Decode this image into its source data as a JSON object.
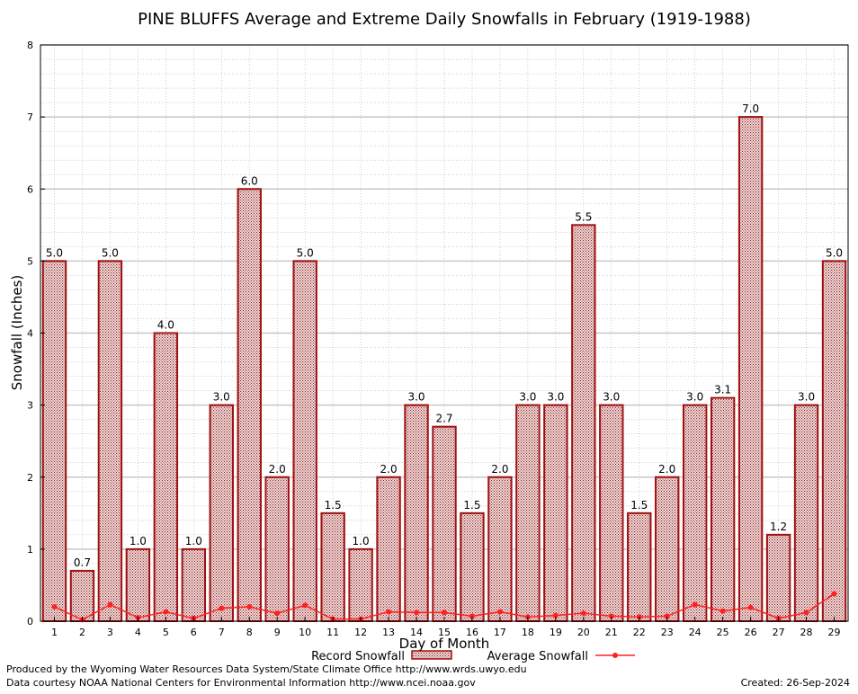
{
  "footer": {
    "credit_line1": "Produced by the Wyoming Water Resources Data System/State Climate Office http://www.wrds.uwyo.edu",
    "credit_line2": "Data courtesy NOAA National Centers for Environmental Information http://www.ncei.noaa.gov",
    "created": "Created:  26-Sep-2024"
  },
  "chart_data": {
    "type": "bar",
    "title": "PINE BLUFFS Average and Extreme Daily Snowfalls in February (1919-1988)",
    "xlabel": "Day of Month",
    "ylabel": "Snowfall (Inches)",
    "ylim": [
      0,
      8
    ],
    "yticks": [
      0,
      1,
      2,
      3,
      4,
      5,
      6,
      7,
      8
    ],
    "grid": true,
    "legend_position": "bottom",
    "colors": {
      "bar_stroke": "#a01010",
      "bar_fill": "#c9a7a7",
      "average_line": "#ff2020"
    },
    "categories": [
      "1",
      "2",
      "3",
      "4",
      "5",
      "6",
      "7",
      "8",
      "9",
      "10",
      "11",
      "12",
      "13",
      "14",
      "15",
      "16",
      "17",
      "18",
      "19",
      "20",
      "21",
      "22",
      "23",
      "24",
      "25",
      "26",
      "27",
      "28",
      "29"
    ],
    "series": [
      {
        "name": "Record Snowfall",
        "type": "bar",
        "values": [
          5.0,
          0.7,
          5.0,
          1.0,
          4.0,
          1.0,
          3.0,
          6.0,
          2.0,
          5.0,
          1.5,
          1.0,
          2.0,
          3.0,
          2.7,
          1.5,
          2.0,
          3.0,
          3.0,
          5.5,
          3.0,
          1.5,
          2.0,
          3.0,
          3.1,
          7.0,
          1.2,
          3.0,
          5.0
        ],
        "labels": [
          "5.0",
          "0.7",
          "5.0",
          "1.0",
          "4.0",
          "1.0",
          "3.0",
          "6.0",
          "2.0",
          "5.0",
          "1.5",
          "1.0",
          "2.0",
          "3.0",
          "2.7",
          "1.5",
          "2.0",
          "3.0",
          "3.0",
          "5.5",
          "3.0",
          "1.5",
          "2.0",
          "3.0",
          "3.1",
          "7.0",
          "1.2",
          "3.0",
          "5.0"
        ]
      },
      {
        "name": "Average Snowfall",
        "type": "line",
        "values": [
          0.2,
          0.02,
          0.23,
          0.05,
          0.13,
          0.04,
          0.18,
          0.2,
          0.11,
          0.22,
          0.03,
          0.03,
          0.13,
          0.12,
          0.12,
          0.07,
          0.13,
          0.06,
          0.08,
          0.11,
          0.07,
          0.06,
          0.07,
          0.23,
          0.14,
          0.19,
          0.04,
          0.12,
          0.38
        ]
      }
    ]
  }
}
